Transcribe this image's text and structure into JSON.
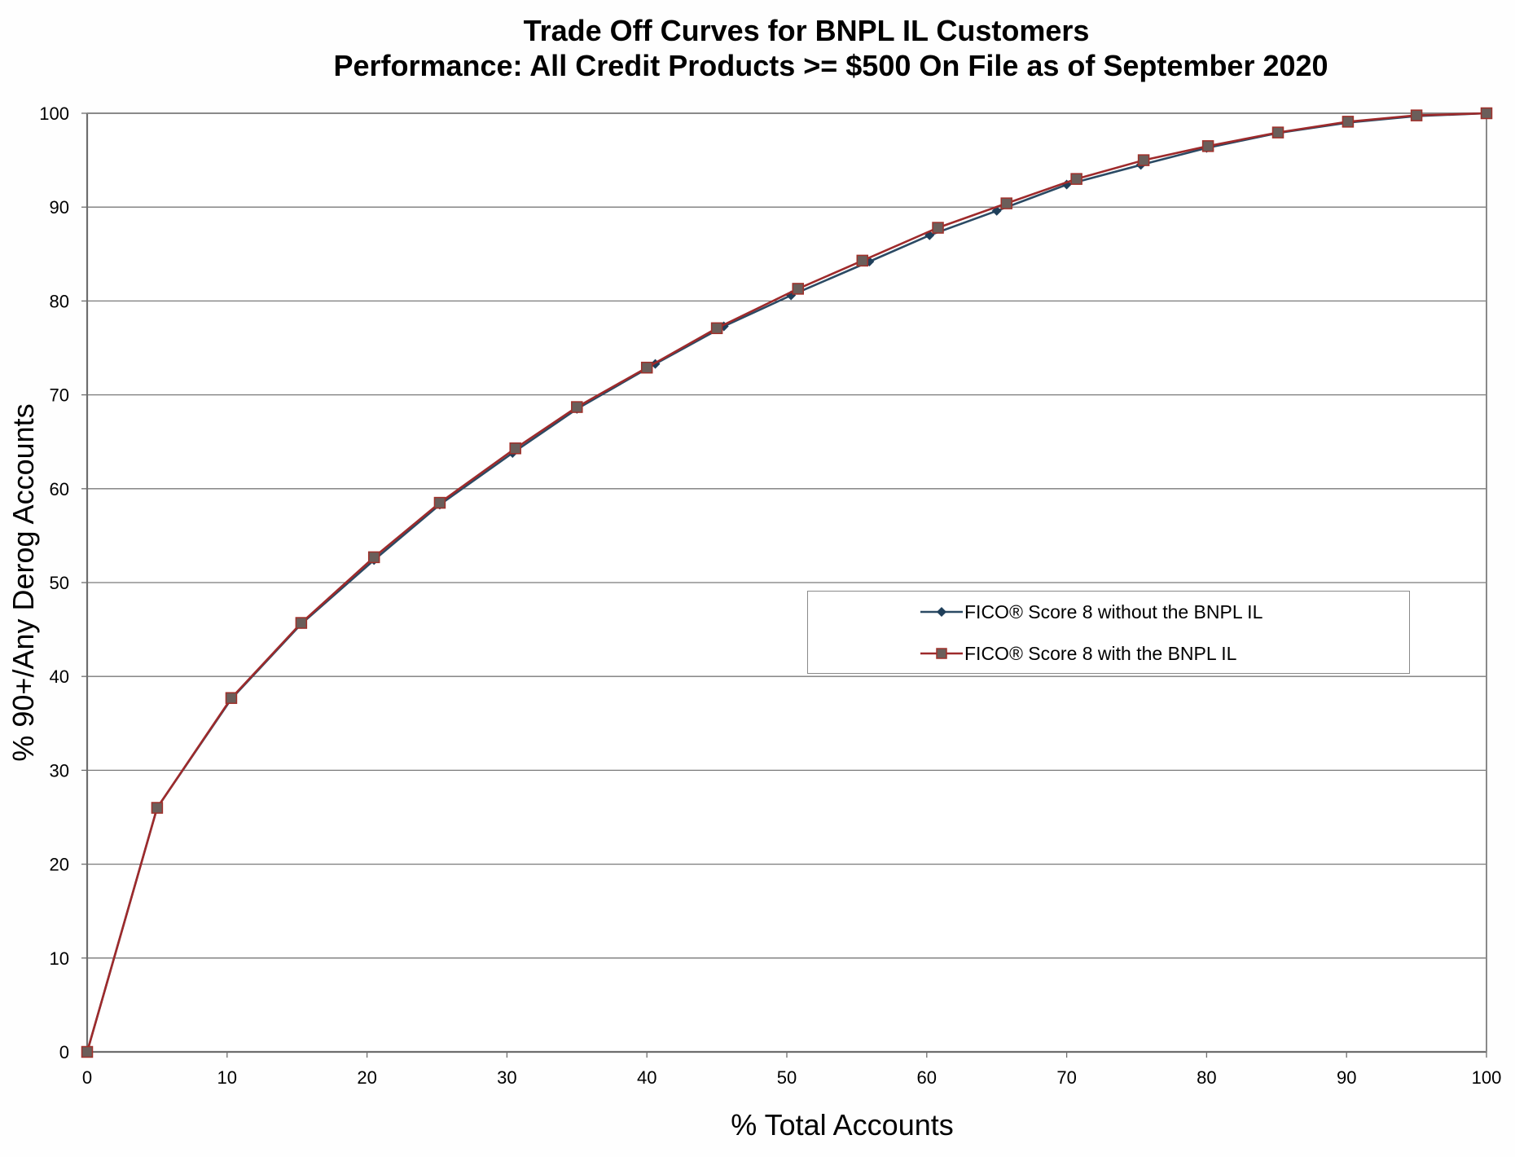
{
  "title": {
    "line1": "Trade Off Curves for BNPL IL Customers",
    "line2": "Performance: All Credit Products >= $500 On File as of September 2020"
  },
  "axes": {
    "xlabel": "% Total Accounts",
    "ylabel": "% 90+/Any Derog Accounts",
    "xticks": [
      "0",
      "10",
      "20",
      "30",
      "40",
      "50",
      "60",
      "70",
      "80",
      "90",
      "100"
    ],
    "yticks": [
      "0",
      "10",
      "20",
      "30",
      "40",
      "50",
      "60",
      "70",
      "80",
      "90",
      "100"
    ]
  },
  "legend": {
    "items": [
      {
        "label": "FICO® Score 8 without the BNPL IL",
        "color": "#2b4a64",
        "marker": "diamond"
      },
      {
        "label": "FICO® Score 8 with the BNPL IL",
        "color": "#9e2a2b",
        "marker": "square"
      }
    ]
  },
  "chart_data": {
    "type": "line",
    "title": "Trade Off Curves for BNPL IL Customers — Performance: All Credit Products >= $500 On File as of September 2020",
    "xlabel": "% Total Accounts",
    "ylabel": "% 90+/Any Derog Accounts",
    "xlim": [
      0,
      100
    ],
    "ylim": [
      0,
      100
    ],
    "grid": "horizontal",
    "legend_position": "inside-right-middle",
    "series": [
      {
        "name": "FICO® Score 8 without the BNPL IL",
        "color": "#2b4a64",
        "marker": "diamond",
        "x": [
          0,
          5,
          10.3,
          15.3,
          20.5,
          25.2,
          30.4,
          35,
          40.6,
          45.5,
          50.3,
          55.9,
          60.2,
          65,
          70,
          75.3,
          80,
          85.1,
          90.1,
          95,
          100
        ],
        "y": [
          0,
          26.0,
          37.6,
          45.6,
          52.4,
          58.3,
          63.8,
          68.5,
          73.3,
          77.3,
          80.6,
          84.2,
          87.0,
          89.6,
          92.4,
          94.5,
          96.3,
          97.9,
          99.0,
          99.7,
          100
        ]
      },
      {
        "name": "FICO® Score 8 with the BNPL IL",
        "color": "#9e2a2b",
        "marker": "square",
        "x": [
          0,
          5,
          10.3,
          15.3,
          20.5,
          25.2,
          30.6,
          35,
          40,
          45,
          50.8,
          55.4,
          60.8,
          65.7,
          70.7,
          75.5,
          80.1,
          85.1,
          90.1,
          95,
          100
        ],
        "y": [
          0,
          26.0,
          37.7,
          45.7,
          52.7,
          58.5,
          64.3,
          68.7,
          72.9,
          77.1,
          81.3,
          84.3,
          87.8,
          90.4,
          93.0,
          95.0,
          96.5,
          97.95,
          99.1,
          99.77,
          100
        ]
      }
    ]
  }
}
